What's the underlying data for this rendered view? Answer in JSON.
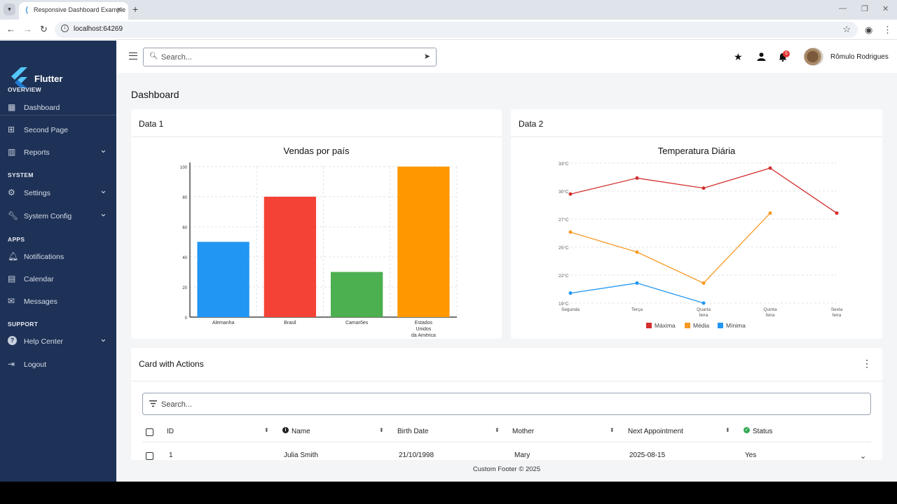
{
  "browser": {
    "tab_title": "Responsive Dashboard Example",
    "url": "localhost:64269"
  },
  "sidebar": {
    "brand": "Flutter",
    "sections": [
      {
        "title": "OVERVIEW",
        "items": [
          {
            "label": "Dashboard",
            "icon": "dashboard-icon"
          },
          {
            "label": "Second Page",
            "icon": "add-box-icon"
          },
          {
            "label": "Reports",
            "icon": "chart-icon",
            "expandable": true
          }
        ]
      },
      {
        "title": "SYSTEM",
        "items": [
          {
            "label": "Settings",
            "icon": "gear-icon",
            "expandable": true
          },
          {
            "label": "System Config",
            "icon": "wrench-icon",
            "expandable": true
          }
        ]
      },
      {
        "title": "APPS",
        "items": [
          {
            "label": "Notifications",
            "icon": "bell-icon"
          },
          {
            "label": "Calendar",
            "icon": "calendar-icon"
          },
          {
            "label": "Messages",
            "icon": "mail-icon"
          }
        ]
      },
      {
        "title": "SUPPORT",
        "items": [
          {
            "label": "Help Center",
            "icon": "help-icon",
            "expandable": true
          },
          {
            "label": "Logout",
            "icon": "logout-icon"
          }
        ]
      }
    ]
  },
  "appbar": {
    "search_placeholder": "Search...",
    "notification_count": "5",
    "user_name": "Rômulo Rodrigues"
  },
  "page": {
    "title": "Dashboard"
  },
  "card1": {
    "title": "Data 1"
  },
  "card2": {
    "title": "Data 2"
  },
  "chart_data": [
    {
      "type": "bar",
      "title": "Vendas por país",
      "categories": [
        "Alemanha",
        "Brasil",
        "Camarões",
        "Estados Unidos da América"
      ],
      "category_lines": [
        [
          "Alemanha"
        ],
        [
          "Brasil"
        ],
        [
          "Camarões"
        ],
        [
          "Estados",
          "Unidos",
          "da América"
        ]
      ],
      "values": [
        50,
        80,
        30,
        100
      ],
      "colors": [
        "#2196f3",
        "#f44336",
        "#4caf50",
        "#ff9800"
      ],
      "yticks": [
        "0",
        "20",
        "40",
        "60",
        "80",
        "100"
      ],
      "ylim": [
        0,
        100
      ],
      "grid": true
    },
    {
      "type": "line",
      "title": "Temperatura Diária",
      "categories": [
        "Segunda",
        "Terça",
        "Quarta feira",
        "Quinta feira",
        "Sexta feira"
      ],
      "category_lines": [
        [
          "Segunda"
        ],
        [
          "Terça"
        ],
        [
          "Quarta",
          "feira"
        ],
        [
          "Quinta",
          "feira"
        ],
        [
          "Sexta",
          "feira"
        ]
      ],
      "yticks": [
        "19°C",
        "22°C",
        "25°C",
        "27°C",
        "30°C",
        "33°C"
      ],
      "ylim": [
        19,
        33
      ],
      "series": [
        {
          "name": "Máxima",
          "color": "#d32f2f",
          "values": [
            29.9,
            31.5,
            30.5,
            32.5,
            28
          ]
        },
        {
          "name": "Média",
          "color": "#f59a23",
          "values": [
            26.1,
            24.1,
            21,
            28,
            null
          ]
        },
        {
          "name": "Mínima",
          "color": "#2196f3",
          "values": [
            20,
            21,
            19,
            null,
            null
          ]
        }
      ],
      "legend": "bottom",
      "grid": true
    }
  ],
  "card3": {
    "title": "Card with Actions",
    "search_placeholder": "Search...",
    "columns": [
      "ID",
      "Name",
      "Birth Date",
      "Mother",
      "Next Appointment",
      "Status"
    ],
    "rows": [
      {
        "id": "1",
        "name": "Julia Smith",
        "birth": "21/10/1998",
        "mother": "Mary",
        "appointment": "2025-08-15",
        "status": "Yes"
      }
    ]
  },
  "footer": {
    "text": "Custom Footer © 2025"
  }
}
